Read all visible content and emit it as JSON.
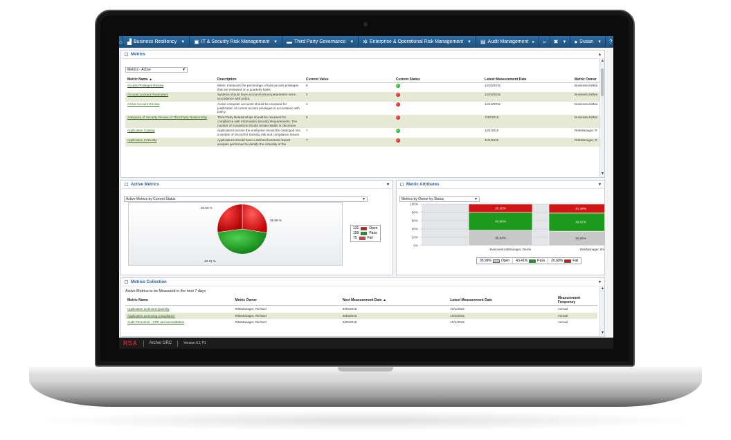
{
  "topnav": {
    "items": [
      {
        "label": "Business Resiliency",
        "icon": "factory-icon"
      },
      {
        "label": "IT & Security Risk Management",
        "icon": "lock-icon"
      },
      {
        "label": "Third Party Governance",
        "icon": "truck-icon"
      },
      {
        "label": "Enterprise & Operational Risk Management",
        "icon": "gear-icon"
      },
      {
        "label": "Audit Management",
        "icon": "document-icon"
      }
    ],
    "user": "Susan"
  },
  "metrics": {
    "title": "Metrics",
    "view_select": "Metrics - Active",
    "columns": [
      "Metric Name",
      "Description",
      "Current Value",
      "Current Status",
      "Latest Measurement Date",
      "Metric Owner"
    ],
    "sort_indicator": "▲",
    "rows": [
      {
        "name": "Access Privileges Review",
        "description": "Metric measures the percentage of total access privileges that are reviewed on a quarterly basis.",
        "value": "8",
        "status": "green",
        "date": "12/23/2015",
        "owner": "BusinessUnitMa"
      },
      {
        "name": "Account Lockout Parameters",
        "description": "Systems should have account lockout parameters set in accordance with policy.",
        "value": "2",
        "status": "red",
        "date": "12/20/2015",
        "owner": "BusinessUnitMa"
      },
      {
        "name": "Active Account Review",
        "description": "Active computer accounts should be reviewed for justification of current access privileges in accordance with policy.",
        "value": "2",
        "status": "red",
        "date": "12/19/2015",
        "owner": "BusinessUnitMa"
      },
      {
        "name": "Adequacy of Security Review of Third Party Relationship",
        "description": "Third-Party Relationships should be reviewed for compliance with Information Security Requirements. The number of exceptions should remain stable or decrease.",
        "value": "6",
        "status": "red",
        "date": "7/30/2015",
        "owner": "BusinessUnitMa"
      },
      {
        "name": "Application Catalog",
        "description": "Applications across the enterprise should be cataloged into a system of record for tracking risk and compliance issues.",
        "value": "7",
        "status": "green",
        "date": "12/1/2015",
        "owner": "RiskManager, R"
      },
      {
        "name": "Application Criticality",
        "description": "Applications should have a defined business impact analysis performed to identify the criticality of the",
        "value": "7",
        "status": "red",
        "date": "11/1/2015",
        "owner": "RiskManager, R"
      }
    ]
  },
  "active_metrics": {
    "title": "Active Metrics",
    "select": "Active Metrics by Current Status",
    "labels": {
      "fail": "20.60 %",
      "open": "35.99 %",
      "pass": "43.41 %"
    },
    "legend": [
      {
        "count": "131",
        "label": "Open",
        "color": "#d11414"
      },
      {
        "count": "158",
        "label": "Pass",
        "color": "#1d9a1d"
      },
      {
        "count": "75",
        "label": "Fail",
        "color": "#e23b3b"
      }
    ]
  },
  "metric_attributes": {
    "title": "Metric Attributes",
    "select": "Metrics by Owner by Status",
    "y_ticks": [
      "100%",
      "80%",
      "60%",
      "40%",
      "20%",
      "0%"
    ],
    "legend": [
      {
        "value": "35.99%",
        "label": "Open",
        "color": "#c8c8c8"
      },
      {
        "value": "43.41%",
        "label": "Pass",
        "color": "#1d9a1d"
      },
      {
        "value": "20.60%",
        "label": "Fail",
        "color": "#d11414"
      }
    ]
  },
  "chart_data": {
    "type": "bar",
    "stacked": true,
    "categories": [
      "BusinessUnitManager, Derek",
      "RiskManager, Richard"
    ],
    "series": [
      {
        "name": "Open",
        "values": [
          36.84,
          34.84
        ]
      },
      {
        "name": "Pass",
        "values": [
          43.06,
          43.67
        ]
      },
      {
        "name": "Fail",
        "values": [
          20.1,
          21.49
        ]
      }
    ],
    "ylim": [
      0,
      100
    ],
    "value_labels": {
      "open": [
        "36.84%",
        "34.84%"
      ],
      "pass": [
        "43.06%",
        "43.67%"
      ],
      "fail": [
        "20.10%",
        "21.49%"
      ]
    }
  },
  "collection": {
    "title": "Metrics Collection",
    "subtitle": "Active Metrics to be Measured in the next 7 days",
    "columns": [
      "Metric Name",
      "Metric Owner",
      "Next Measurement Date",
      "Latest Measurement Date",
      "Measurement Frequency"
    ],
    "sort_indicator": "▲",
    "rows": [
      {
        "name": "Application Licensed Quantity",
        "owner": "RiskManager, Richard",
        "next": "9/30/2016",
        "latest": "10/1/2015",
        "freq": "Annual"
      },
      {
        "name": "Application Licensing Compliance",
        "owner": "RiskManager, Richard",
        "next": "9/30/2016",
        "latest": "10/1/2015",
        "freq": "Annual"
      },
      {
        "name": "Audit Personnel - CPE and accreditation",
        "owner": "RiskManager, Richard",
        "next": "9/30/2016",
        "latest": "10/1/2015",
        "freq": "Annual"
      }
    ]
  },
  "footer": {
    "logo": "RSA",
    "product": "Archer GRC",
    "version": "Version 6.1 P1"
  }
}
